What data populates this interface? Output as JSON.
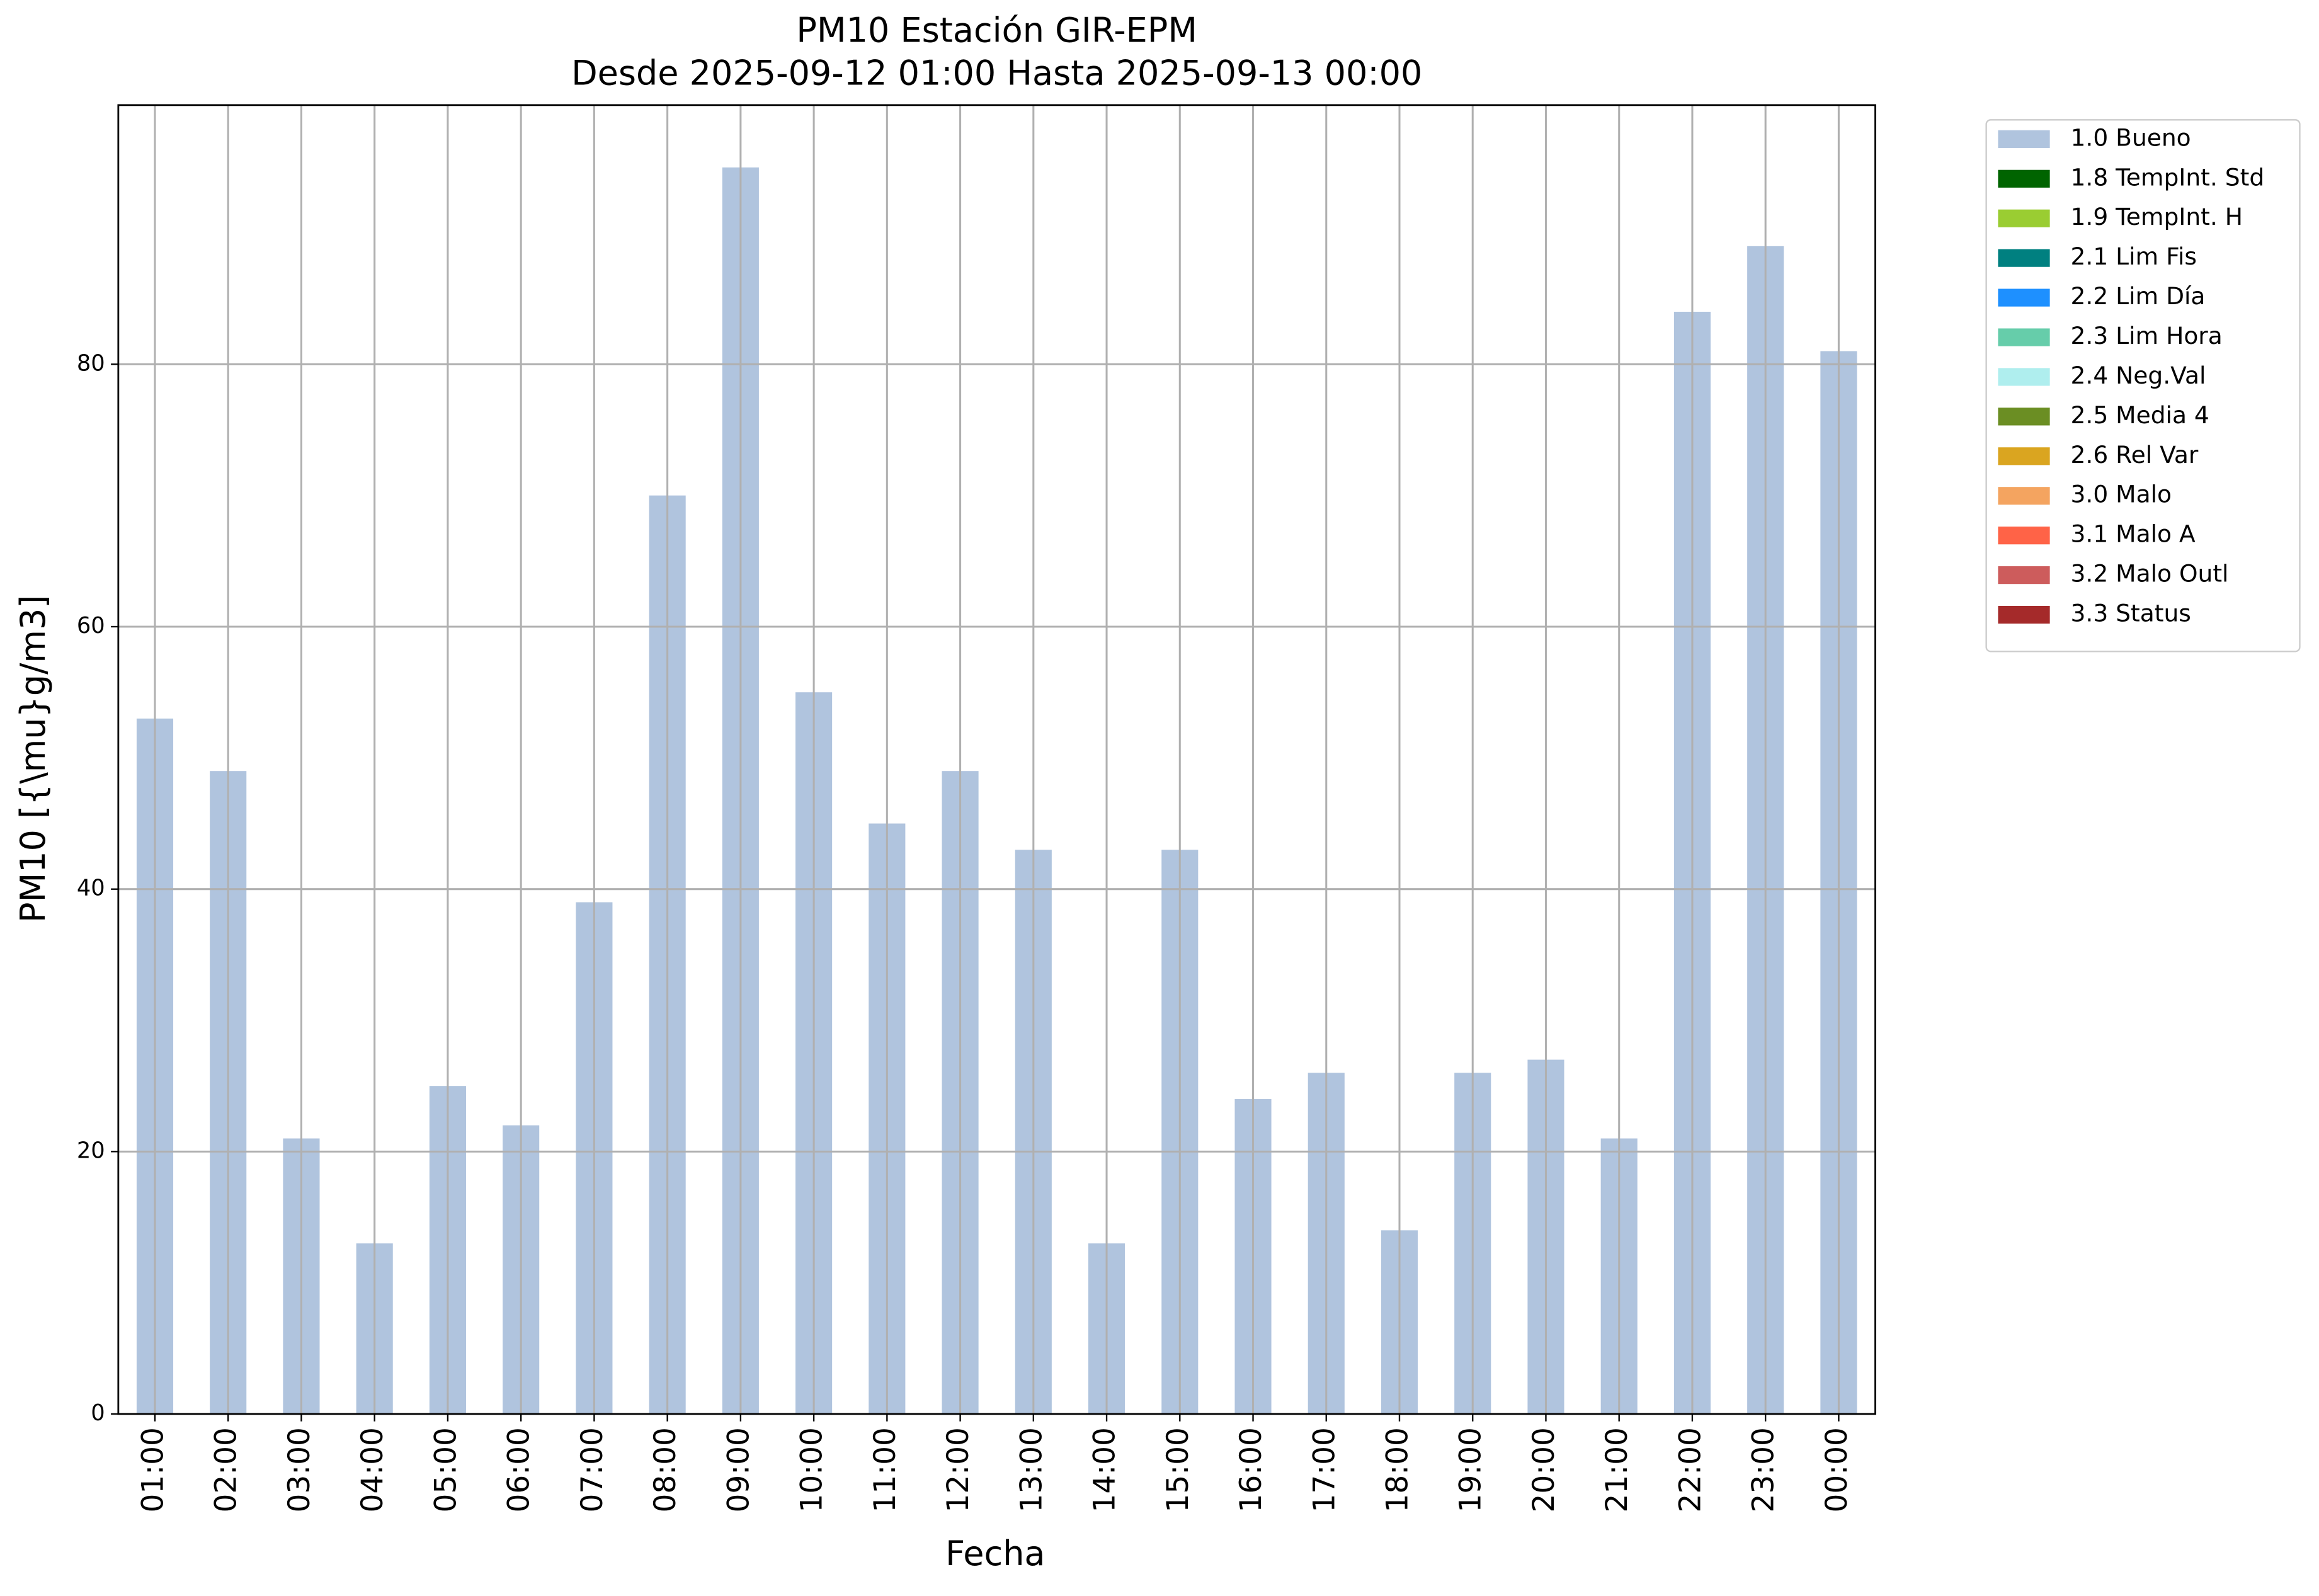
{
  "chart_data": {
    "type": "bar",
    "stacked": true,
    "title": "PM10 Estación GIR-EPM",
    "subtitle": "Desde 2025-09-12 01:00 Hasta 2025-09-13 00:00",
    "xlabel": "Fecha",
    "ylabel": "PM10 [{\\mu}g/m3]",
    "categories": [
      "01:00",
      "02:00",
      "03:00",
      "04:00",
      "05:00",
      "06:00",
      "07:00",
      "08:00",
      "09:00",
      "10:00",
      "11:00",
      "12:00",
      "13:00",
      "14:00",
      "15:00",
      "16:00",
      "17:00",
      "18:00",
      "19:00",
      "20:00",
      "21:00",
      "22:00",
      "23:00",
      "00:00"
    ],
    "series": [
      {
        "name": "1.0 Bueno",
        "color": "#b0c4de",
        "values": [
          53,
          49,
          21,
          13,
          25,
          22,
          39,
          70,
          95,
          55,
          45,
          49,
          43,
          13,
          43,
          24,
          26,
          14,
          26,
          27,
          21,
          84,
          89,
          81
        ]
      },
      {
        "name": "1.8 TempInt. Std",
        "color": "#006400",
        "values": [
          0,
          0,
          0,
          0,
          0,
          0,
          0,
          0,
          0,
          0,
          0,
          0,
          0,
          0,
          0,
          0,
          0,
          0,
          0,
          0,
          0,
          0,
          0,
          0
        ]
      },
      {
        "name": "1.9 TempInt. H",
        "color": "#9acd32",
        "values": [
          0,
          0,
          0,
          0,
          0,
          0,
          0,
          0,
          0,
          0,
          0,
          0,
          0,
          0,
          0,
          0,
          0,
          0,
          0,
          0,
          0,
          0,
          0,
          0
        ]
      },
      {
        "name": "2.1 Lim Fis",
        "color": "#008080",
        "values": [
          0,
          0,
          0,
          0,
          0,
          0,
          0,
          0,
          0,
          0,
          0,
          0,
          0,
          0,
          0,
          0,
          0,
          0,
          0,
          0,
          0,
          0,
          0,
          0
        ]
      },
      {
        "name": "2.2 Lim Día",
        "color": "#1e90ff",
        "values": [
          0,
          0,
          0,
          0,
          0,
          0,
          0,
          0,
          0,
          0,
          0,
          0,
          0,
          0,
          0,
          0,
          0,
          0,
          0,
          0,
          0,
          0,
          0,
          0
        ]
      },
      {
        "name": "2.3 Lim Hora",
        "color": "#66cdaa",
        "values": [
          0,
          0,
          0,
          0,
          0,
          0,
          0,
          0,
          0,
          0,
          0,
          0,
          0,
          0,
          0,
          0,
          0,
          0,
          0,
          0,
          0,
          0,
          0,
          0
        ]
      },
      {
        "name": "2.4 Neg.Val",
        "color": "#afeeee",
        "values": [
          0,
          0,
          0,
          0,
          0,
          0,
          0,
          0,
          0,
          0,
          0,
          0,
          0,
          0,
          0,
          0,
          0,
          0,
          0,
          0,
          0,
          0,
          0,
          0
        ]
      },
      {
        "name": "2.5 Media 4",
        "color": "#6b8e23",
        "values": [
          0,
          0,
          0,
          0,
          0,
          0,
          0,
          0,
          0,
          0,
          0,
          0,
          0,
          0,
          0,
          0,
          0,
          0,
          0,
          0,
          0,
          0,
          0,
          0
        ]
      },
      {
        "name": "2.6 Rel Var",
        "color": "#daa520",
        "values": [
          0,
          0,
          0,
          0,
          0,
          0,
          0,
          0,
          0,
          0,
          0,
          0,
          0,
          0,
          0,
          0,
          0,
          0,
          0,
          0,
          0,
          0,
          0,
          0
        ]
      },
      {
        "name": "3.0 Malo",
        "color": "#f4a460",
        "values": [
          0,
          0,
          0,
          0,
          0,
          0,
          0,
          0,
          0,
          0,
          0,
          0,
          0,
          0,
          0,
          0,
          0,
          0,
          0,
          0,
          0,
          0,
          0,
          0
        ]
      },
      {
        "name": "3.1 Malo A",
        "color": "#ff6347",
        "values": [
          0,
          0,
          0,
          0,
          0,
          0,
          0,
          0,
          0,
          0,
          0,
          0,
          0,
          0,
          0,
          0,
          0,
          0,
          0,
          0,
          0,
          0,
          0,
          0
        ]
      },
      {
        "name": "3.2 Malo Outl",
        "color": "#cd5c5c",
        "values": [
          0,
          0,
          0,
          0,
          0,
          0,
          0,
          0,
          0,
          0,
          0,
          0,
          0,
          0,
          0,
          0,
          0,
          0,
          0,
          0,
          0,
          0,
          0,
          0
        ]
      },
      {
        "name": "3.3 Status",
        "color": "#a52a2a",
        "values": [
          0,
          0,
          0,
          0,
          0,
          0,
          0,
          0,
          0,
          0,
          0,
          0,
          0,
          0,
          0,
          0,
          0,
          0,
          0,
          0,
          0,
          0,
          0,
          0
        ]
      }
    ],
    "ylim": [
      0,
      99.75
    ],
    "yticks": [
      0,
      20,
      40,
      60,
      80
    ],
    "grid": true,
    "legend": "outside-upper-right"
  }
}
